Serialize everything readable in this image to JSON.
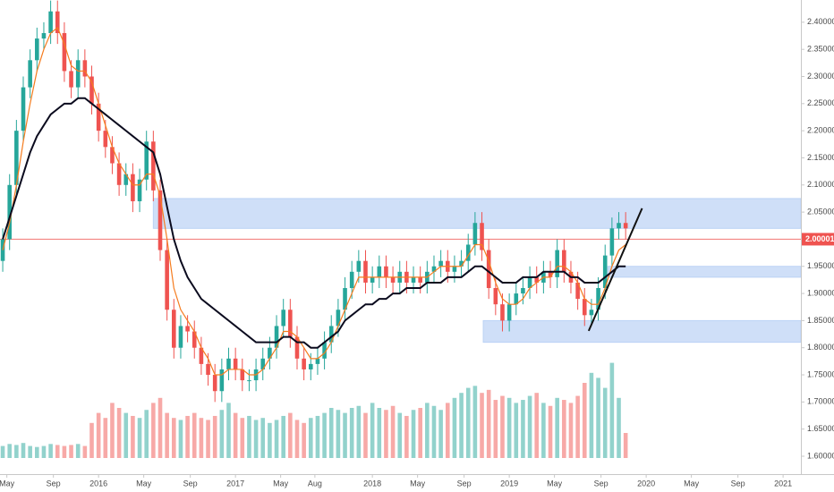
{
  "chart_data": {
    "type": "candlestick",
    "up_color": "#26a69a",
    "down_color": "#ef5350",
    "xlim": [
      2015.28,
      2021.13
    ],
    "ylim": [
      1.567,
      2.441
    ],
    "xticks": [
      {
        "value": 2015.33,
        "label": "May"
      },
      {
        "value": 2015.67,
        "label": "Sep"
      },
      2016,
      {
        "value": 2016.33,
        "label": "May"
      },
      {
        "value": 2016.67,
        "label": "Sep"
      },
      2017,
      {
        "value": 2017.33,
        "label": "May"
      },
      {
        "value": 2017.58,
        "label": "Aug"
      },
      2018,
      {
        "value": 2018.33,
        "label": "May"
      },
      {
        "value": 2018.67,
        "label": "Sep"
      },
      2019,
      {
        "value": 2019.33,
        "label": "May"
      },
      {
        "value": 2019.67,
        "label": "Sep"
      },
      2020,
      {
        "value": 2020.33,
        "label": "May"
      },
      {
        "value": 2020.67,
        "label": "Sep"
      },
      2021
    ],
    "yticks": [
      {
        "value": 1.6,
        "label": "1.60000"
      },
      {
        "value": 1.65,
        "label": "1.65000"
      },
      {
        "value": 1.7,
        "label": "1.70000"
      },
      {
        "value": 1.75,
        "label": "1.75000"
      },
      {
        "value": 1.8,
        "label": "1.80000"
      },
      {
        "value": 1.85,
        "label": "1.85000"
      },
      {
        "value": 1.9,
        "label": "1.90000"
      },
      {
        "value": 1.95,
        "label": "1.95000"
      },
      {
        "value": 2.0,
        "label": "2.00000"
      },
      {
        "value": 2.05,
        "label": "2.05000"
      },
      {
        "value": 2.1,
        "label": "2.10000"
      },
      {
        "value": 2.15,
        "label": "2.15000"
      },
      {
        "value": 2.2,
        "label": "2.20000"
      },
      {
        "value": 2.25,
        "label": "2.25000"
      },
      {
        "value": 2.3,
        "label": "2.30000"
      },
      {
        "value": 2.35,
        "label": "2.35000"
      },
      {
        "value": 2.4,
        "label": "2.40000"
      }
    ],
    "x": [
      2015.3,
      2015.35,
      2015.4,
      2015.45,
      2015.5,
      2015.55,
      2015.6,
      2015.65,
      2015.7,
      2015.75,
      2015.8,
      2015.85,
      2015.9,
      2015.95,
      2016.0,
      2016.05,
      2016.1,
      2016.15,
      2016.2,
      2016.25,
      2016.3,
      2016.35,
      2016.4,
      2016.45,
      2016.5,
      2016.55,
      2016.6,
      2016.65,
      2016.7,
      2016.75,
      2016.8,
      2016.85,
      2016.9,
      2016.95,
      2017.0,
      2017.05,
      2017.1,
      2017.15,
      2017.2,
      2017.25,
      2017.3,
      2017.35,
      2017.4,
      2017.45,
      2017.5,
      2017.55,
      2017.6,
      2017.65,
      2017.7,
      2017.75,
      2017.8,
      2017.85,
      2017.9,
      2017.95,
      2018.0,
      2018.05,
      2018.1,
      2018.15,
      2018.2,
      2018.25,
      2018.3,
      2018.35,
      2018.4,
      2018.45,
      2018.5,
      2018.55,
      2018.6,
      2018.65,
      2018.7,
      2018.75,
      2018.8,
      2018.85,
      2018.9,
      2018.95,
      2019.0,
      2019.05,
      2019.1,
      2019.15,
      2019.2,
      2019.25,
      2019.3,
      2019.35,
      2019.4,
      2019.45,
      2019.5,
      2019.55,
      2019.6,
      2019.65,
      2019.7,
      2019.75,
      2019.8,
      2019.85
    ],
    "open": [
      1.96,
      2.0,
      2.1,
      2.2,
      2.28,
      2.33,
      2.37,
      2.38,
      2.42,
      2.38,
      2.31,
      2.28,
      2.33,
      2.3,
      2.25,
      2.2,
      2.17,
      2.14,
      2.1,
      2.12,
      2.07,
      2.11,
      2.18,
      2.09,
      1.98,
      1.87,
      1.8,
      1.84,
      1.83,
      1.8,
      1.77,
      1.75,
      1.72,
      1.76,
      1.78,
      1.76,
      1.74,
      1.74,
      1.76,
      1.78,
      1.8,
      1.84,
      1.87,
      1.82,
      1.78,
      1.76,
      1.77,
      1.78,
      1.81,
      1.84,
      1.87,
      1.91,
      1.94,
      1.96,
      1.92,
      1.93,
      1.95,
      1.93,
      1.92,
      1.94,
      1.92,
      1.93,
      1.92,
      1.94,
      1.95,
      1.96,
      1.94,
      1.95,
      1.96,
      1.99,
      2.03,
      1.98,
      1.91,
      1.88,
      1.85,
      1.88,
      1.9,
      1.91,
      1.93,
      1.92,
      1.94,
      1.93,
      1.98,
      1.94,
      1.92,
      1.89,
      1.86,
      1.87,
      1.91,
      1.97,
      2.02,
      2.03
    ],
    "high": [
      2.02,
      2.12,
      2.22,
      2.3,
      2.35,
      2.39,
      2.4,
      2.44,
      2.44,
      2.4,
      2.33,
      2.35,
      2.35,
      2.32,
      2.27,
      2.22,
      2.19,
      2.16,
      2.14,
      2.14,
      2.13,
      2.2,
      2.2,
      2.11,
      2.0,
      1.89,
      1.86,
      1.86,
      1.85,
      1.82,
      1.79,
      1.77,
      1.78,
      1.8,
      1.8,
      1.78,
      1.76,
      1.78,
      1.8,
      1.82,
      1.86,
      1.89,
      1.89,
      1.84,
      1.8,
      1.79,
      1.8,
      1.83,
      1.86,
      1.89,
      1.93,
      1.96,
      1.98,
      1.98,
      1.95,
      1.97,
      1.97,
      1.95,
      1.96,
      1.96,
      1.95,
      1.95,
      1.96,
      1.97,
      1.98,
      1.98,
      1.97,
      1.98,
      2.01,
      2.05,
      2.05,
      2.0,
      1.93,
      1.9,
      1.9,
      1.92,
      1.93,
      1.95,
      1.95,
      1.96,
      1.96,
      2.0,
      2.0,
      1.96,
      1.94,
      1.91,
      1.89,
      1.93,
      1.99,
      2.04,
      2.05,
      2.05
    ],
    "low": [
      1.94,
      1.98,
      2.08,
      2.18,
      2.26,
      2.31,
      2.35,
      2.36,
      2.36,
      2.29,
      2.26,
      2.26,
      2.28,
      2.23,
      2.18,
      2.15,
      2.12,
      2.08,
      2.08,
      2.05,
      2.05,
      2.09,
      2.07,
      1.96,
      1.85,
      1.78,
      1.78,
      1.81,
      1.78,
      1.75,
      1.73,
      1.7,
      1.7,
      1.74,
      1.74,
      1.72,
      1.72,
      1.72,
      1.74,
      1.76,
      1.78,
      1.82,
      1.8,
      1.76,
      1.74,
      1.74,
      1.75,
      1.76,
      1.79,
      1.82,
      1.85,
      1.89,
      1.92,
      1.9,
      1.9,
      1.91,
      1.91,
      1.9,
      1.9,
      1.9,
      1.9,
      1.9,
      1.9,
      1.92,
      1.93,
      1.92,
      1.92,
      1.93,
      1.94,
      1.97,
      1.96,
      1.89,
      1.86,
      1.83,
      1.83,
      1.86,
      1.88,
      1.89,
      1.9,
      1.9,
      1.91,
      1.91,
      1.92,
      1.9,
      1.87,
      1.84,
      1.84,
      1.85,
      1.89,
      1.95,
      2.0,
      2.0
    ],
    "close": [
      2.0,
      2.1,
      2.2,
      2.28,
      2.33,
      2.37,
      2.38,
      2.42,
      2.38,
      2.31,
      2.28,
      2.33,
      2.3,
      2.25,
      2.2,
      2.17,
      2.14,
      2.1,
      2.12,
      2.07,
      2.11,
      2.18,
      2.09,
      1.98,
      1.87,
      1.8,
      1.84,
      1.83,
      1.8,
      1.77,
      1.75,
      1.72,
      1.76,
      1.78,
      1.76,
      1.74,
      1.74,
      1.76,
      1.78,
      1.8,
      1.84,
      1.87,
      1.82,
      1.78,
      1.76,
      1.77,
      1.78,
      1.81,
      1.84,
      1.87,
      1.91,
      1.94,
      1.96,
      1.92,
      1.93,
      1.95,
      1.93,
      1.92,
      1.94,
      1.92,
      1.93,
      1.92,
      1.94,
      1.95,
      1.96,
      1.94,
      1.95,
      1.96,
      1.99,
      2.03,
      1.98,
      1.91,
      1.88,
      1.85,
      1.88,
      1.9,
      1.91,
      1.93,
      1.92,
      1.94,
      1.93,
      1.98,
      1.94,
      1.92,
      1.89,
      1.86,
      1.87,
      1.91,
      1.97,
      2.02,
      2.03,
      2.02
    ],
    "volume": [
      12,
      14,
      13,
      15,
      12,
      11,
      12,
      14,
      13,
      12,
      13,
      14,
      12,
      35,
      45,
      40,
      55,
      50,
      45,
      42,
      40,
      48,
      55,
      60,
      45,
      40,
      38,
      42,
      45,
      40,
      38,
      42,
      48,
      55,
      45,
      40,
      42,
      38,
      40,
      35,
      38,
      42,
      45,
      38,
      35,
      40,
      42,
      45,
      50,
      48,
      45,
      50,
      52,
      45,
      55,
      50,
      48,
      52,
      45,
      42,
      48,
      50,
      55,
      52,
      48,
      55,
      60,
      65,
      70,
      72,
      65,
      68,
      58,
      62,
      60,
      55,
      58,
      62,
      65,
      55,
      52,
      60,
      58,
      55,
      62,
      75,
      85,
      80,
      70,
      95,
      60,
      25
    ],
    "volume_lim": [
      0,
      100
    ],
    "ma_short": {
      "color": "#f57c1f",
      "values": [
        1.98,
        2.03,
        2.1,
        2.18,
        2.25,
        2.31,
        2.35,
        2.38,
        2.39,
        2.36,
        2.32,
        2.31,
        2.31,
        2.29,
        2.25,
        2.21,
        2.17,
        2.14,
        2.12,
        2.1,
        2.1,
        2.12,
        2.12,
        2.08,
        2.0,
        1.91,
        1.87,
        1.85,
        1.83,
        1.8,
        1.78,
        1.75,
        1.75,
        1.76,
        1.76,
        1.76,
        1.75,
        1.75,
        1.76,
        1.78,
        1.8,
        1.83,
        1.83,
        1.82,
        1.8,
        1.78,
        1.78,
        1.79,
        1.81,
        1.84,
        1.87,
        1.9,
        1.93,
        1.93,
        1.93,
        1.93,
        1.93,
        1.93,
        1.93,
        1.93,
        1.93,
        1.93,
        1.93,
        1.94,
        1.95,
        1.95,
        1.95,
        1.95,
        1.97,
        1.99,
        1.99,
        1.96,
        1.92,
        1.89,
        1.88,
        1.88,
        1.89,
        1.91,
        1.92,
        1.93,
        1.93,
        1.95,
        1.95,
        1.94,
        1.92,
        1.89,
        1.88,
        1.88,
        1.91,
        1.95,
        1.98,
        1.99
      ]
    },
    "ma_long": {
      "color": "#0b0b1e",
      "values": [
        2.0,
        2.04,
        2.08,
        2.12,
        2.16,
        2.19,
        2.21,
        2.23,
        2.24,
        2.25,
        2.25,
        2.26,
        2.26,
        2.25,
        2.24,
        2.23,
        2.22,
        2.21,
        2.2,
        2.19,
        2.18,
        2.17,
        2.16,
        2.12,
        2.06,
        2.0,
        1.96,
        1.93,
        1.91,
        1.89,
        1.88,
        1.87,
        1.86,
        1.85,
        1.84,
        1.83,
        1.82,
        1.81,
        1.81,
        1.81,
        1.81,
        1.82,
        1.82,
        1.81,
        1.81,
        1.8,
        1.8,
        1.81,
        1.82,
        1.83,
        1.85,
        1.86,
        1.87,
        1.88,
        1.88,
        1.89,
        1.89,
        1.9,
        1.9,
        1.91,
        1.91,
        1.91,
        1.92,
        1.92,
        1.92,
        1.93,
        1.93,
        1.93,
        1.94,
        1.95,
        1.95,
        1.94,
        1.93,
        1.92,
        1.92,
        1.92,
        1.93,
        1.93,
        1.93,
        1.94,
        1.94,
        1.94,
        1.94,
        1.93,
        1.93,
        1.92,
        1.92,
        1.92,
        1.93,
        1.94,
        1.95,
        1.95
      ]
    },
    "zones": [
      {
        "low": 2.02,
        "high": 2.075,
        "start": 2016.4
      },
      {
        "low": 1.93,
        "high": 1.95,
        "start": 2019.72
      },
      {
        "low": 1.81,
        "high": 1.85,
        "start": 2018.81
      }
    ],
    "zone_color": "#bbd2f5",
    "trendline": {
      "x": [
        2019.58,
        2019.97
      ],
      "y": [
        1.831,
        2.057
      ]
    },
    "price_line": 2.00001,
    "price_line_color": "#ef5350"
  }
}
